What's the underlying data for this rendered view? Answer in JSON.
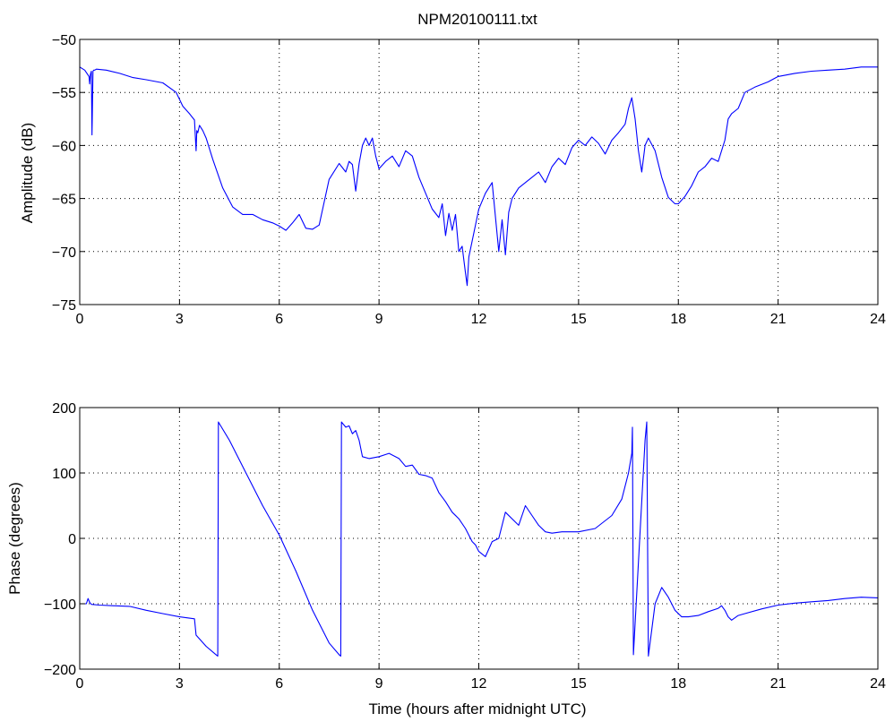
{
  "colors": {
    "line": "#0000ff",
    "axis": "#000000",
    "background": "#ffffff"
  },
  "chart_data": [
    {
      "type": "line",
      "title": "NPM20100111.txt",
      "xlabel": "",
      "ylabel": "Amplitude (dB)",
      "xlim": [
        0,
        24
      ],
      "ylim": [
        -75,
        -50
      ],
      "xticks": [
        0,
        3,
        6,
        9,
        12,
        15,
        18,
        21,
        24
      ],
      "xtick_labels": [
        "0",
        "3",
        "6",
        "9",
        "12",
        "15",
        "18",
        "21",
        "24"
      ],
      "yticks": [
        -75,
        -70,
        -65,
        -60,
        -55,
        -50
      ],
      "ytick_labels": [
        "−75",
        "−70",
        "−65",
        "−60",
        "−55",
        "−50"
      ],
      "grid": true,
      "series": [
        {
          "x": [
            0,
            0.15,
            0.28,
            0.3,
            0.32,
            0.35,
            0.37,
            0.4,
            0.42,
            0.45,
            0.5,
            0.8,
            1.2,
            1.6,
            2.0,
            2.5,
            2.9,
            3.1,
            3.3,
            3.45,
            3.5,
            3.52,
            3.55,
            3.6,
            3.7,
            3.8,
            4.0,
            4.3,
            4.6,
            4.9,
            5.2,
            5.5,
            5.8,
            6.0,
            6.2,
            6.4,
            6.6,
            6.8,
            7.0,
            7.2,
            7.5,
            7.8,
            8.0,
            8.1,
            8.2,
            8.3,
            8.4,
            8.5,
            8.6,
            8.7,
            8.8,
            8.9,
            9.0,
            9.2,
            9.4,
            9.6,
            9.8,
            10.0,
            10.2,
            10.4,
            10.6,
            10.8,
            10.9,
            11.0,
            11.1,
            11.2,
            11.3,
            11.4,
            11.5,
            11.6,
            11.65,
            11.7,
            11.8,
            11.9,
            12.0,
            12.2,
            12.4,
            12.6,
            12.7,
            12.8,
            12.9,
            13.0,
            13.2,
            13.4,
            13.6,
            13.8,
            14.0,
            14.2,
            14.4,
            14.6,
            14.8,
            15.0,
            15.2,
            15.4,
            15.6,
            15.8,
            16.0,
            16.2,
            16.4,
            16.5,
            16.6,
            16.7,
            16.8,
            16.9,
            17.0,
            17.1,
            17.3,
            17.5,
            17.7,
            17.9,
            18.0,
            18.2,
            18.4,
            18.6,
            18.8,
            19.0,
            19.2,
            19.4,
            19.5,
            19.6,
            19.8,
            20.0,
            20.3,
            20.7,
            21.0,
            21.5,
            22.0,
            22.5,
            23.0,
            23.5,
            24.0
          ],
          "y": [
            -52.6,
            -52.9,
            -53.5,
            -54.2,
            -53.3,
            -53.0,
            -59.0,
            -53.0,
            -52.9,
            -52.9,
            -52.8,
            -52.9,
            -53.2,
            -53.6,
            -53.8,
            -54.1,
            -55.0,
            -56.3,
            -57.0,
            -57.6,
            -60.5,
            -58.6,
            -58.8,
            -58.1,
            -58.6,
            -59.3,
            -61.3,
            -64.0,
            -65.8,
            -66.5,
            -66.5,
            -67.0,
            -67.3,
            -67.6,
            -68.0,
            -67.3,
            -66.5,
            -67.8,
            -67.9,
            -67.5,
            -63.2,
            -61.7,
            -62.5,
            -61.5,
            -61.8,
            -64.3,
            -61.7,
            -60.0,
            -59.3,
            -60.0,
            -59.3,
            -61.0,
            -62.2,
            -61.5,
            -61.0,
            -62.0,
            -60.5,
            -61.0,
            -63.0,
            -64.5,
            -66.0,
            -66.8,
            -65.5,
            -68.5,
            -66.4,
            -68.0,
            -66.5,
            -70.0,
            -69.5,
            -72.0,
            -73.2,
            -70.5,
            -69.0,
            -67.5,
            -66.0,
            -64.5,
            -63.5,
            -70.0,
            -67.0,
            -70.3,
            -66.3,
            -65.0,
            -64.0,
            -63.5,
            -63.0,
            -62.5,
            -63.5,
            -62.0,
            -61.2,
            -61.8,
            -60.2,
            -59.5,
            -60.0,
            -59.2,
            -59.8,
            -60.8,
            -59.5,
            -58.8,
            -58.0,
            -56.5,
            -55.5,
            -57.5,
            -60.5,
            -62.5,
            -60.0,
            -59.3,
            -60.5,
            -63.0,
            -64.9,
            -65.5,
            -65.5,
            -64.8,
            -63.8,
            -62.5,
            -62.0,
            -61.2,
            -61.5,
            -59.5,
            -57.5,
            -57.0,
            -56.5,
            -55.0,
            -54.5,
            -54.0,
            -53.5,
            -53.2,
            -53.0,
            -52.9,
            -52.8,
            -52.6,
            -52.6
          ]
        }
      ]
    },
    {
      "type": "line",
      "title": "",
      "xlabel": "Time (hours after midnight UTC)",
      "ylabel": "Phase (degrees)",
      "xlim": [
        0,
        24
      ],
      "ylim": [
        -200,
        200
      ],
      "xticks": [
        0,
        3,
        6,
        9,
        12,
        15,
        18,
        21,
        24
      ],
      "xtick_labels": [
        "0",
        "3",
        "6",
        "9",
        "12",
        "15",
        "18",
        "21",
        "24"
      ],
      "yticks": [
        -200,
        -100,
        0,
        100,
        200
      ],
      "ytick_labels": [
        "−200",
        "−100",
        "0",
        "100",
        "200"
      ],
      "grid": true,
      "series": [
        {
          "x": [
            0,
            0.2,
            0.25,
            0.3,
            0.35,
            0.6,
            1.0,
            1.5,
            2.0,
            2.5,
            3.0,
            3.45,
            3.5,
            3.8,
            4.1,
            4.15,
            4.17,
            4.5,
            5.0,
            5.5,
            6.0,
            6.5,
            7.0,
            7.5,
            7.8,
            7.85,
            7.87,
            8.0,
            8.1,
            8.2,
            8.3,
            8.4,
            8.5,
            8.7,
            9.0,
            9.3,
            9.6,
            9.8,
            10.0,
            10.2,
            10.4,
            10.6,
            10.8,
            11.0,
            11.2,
            11.4,
            11.6,
            11.8,
            11.9,
            12.0,
            12.2,
            12.4,
            12.6,
            12.8,
            13.0,
            13.2,
            13.4,
            13.6,
            13.8,
            14.0,
            14.2,
            14.5,
            15.0,
            15.5,
            16.0,
            16.3,
            16.5,
            16.6,
            16.62,
            16.65,
            17.0,
            17.05,
            17.1,
            17.3,
            17.5,
            17.7,
            17.9,
            18.1,
            18.3,
            18.6,
            18.9,
            19.2,
            19.3,
            19.4,
            19.5,
            19.6,
            19.8,
            20.0,
            20.5,
            21.0,
            21.5,
            22.0,
            22.5,
            23.0,
            23.5,
            24.0
          ],
          "y": [
            -100,
            -100,
            -92,
            -98,
            -101,
            -102,
            -103,
            -104,
            -110,
            -115,
            -120,
            -123,
            -148,
            -165,
            -178,
            -180,
            178,
            150,
            100,
            50,
            5,
            -50,
            -110,
            -160,
            -178,
            -180,
            178,
            170,
            172,
            160,
            165,
            150,
            125,
            122,
            125,
            130,
            122,
            110,
            112,
            98,
            96,
            92,
            70,
            56,
            40,
            30,
            15,
            -5,
            -10,
            -20,
            -28,
            -5,
            0,
            40,
            30,
            20,
            50,
            35,
            20,
            10,
            8,
            10,
            10,
            15,
            35,
            60,
            100,
            130,
            170,
            -178,
            150,
            178,
            -180,
            -100,
            -75,
            -90,
            -110,
            -120,
            -120,
            -118,
            -112,
            -107,
            -103,
            -110,
            -120,
            -125,
            -118,
            -115,
            -108,
            -102,
            -99,
            -97,
            -95,
            -92,
            -90,
            -91
          ]
        }
      ]
    }
  ]
}
